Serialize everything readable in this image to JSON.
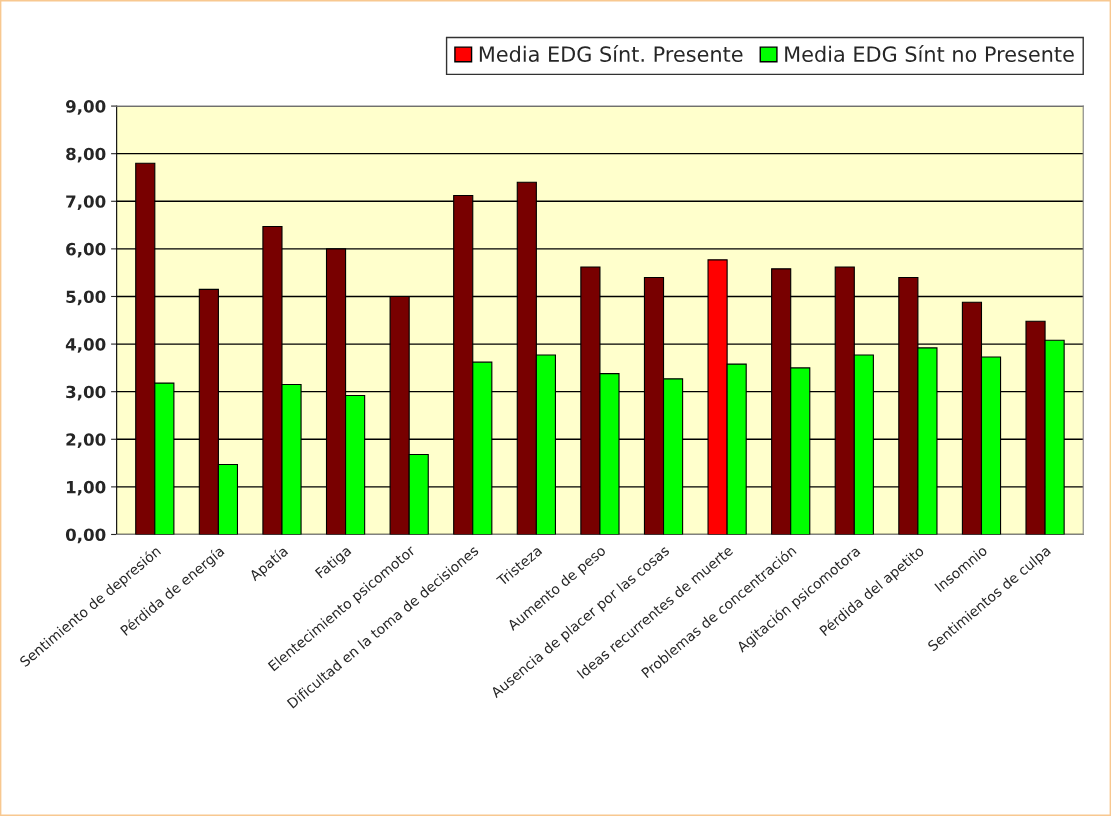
{
  "chart_data": {
    "type": "bar",
    "categories": [
      "Sentimiento de depresión",
      "Pérdida de energía",
      "Apatía",
      "Fatiga",
      "Elentecimiento psicomotor",
      "Dificultad en la toma de decisiones",
      "Tristeza",
      "Aumento de peso",
      "Ausencia de placer por las cosas",
      "Ideas recurrentes de muerte",
      "Problemas de concentración",
      "Agitación psicomotora",
      "Pérdida del apetito",
      "Insomnio",
      "Sentimientos de culpa"
    ],
    "series": [
      {
        "name": "Media EDG Sínt. Presente",
        "color": "#ff0000",
        "colors": [
          "#780000",
          "#780000",
          "#780000",
          "#780000",
          "#780000",
          "#780000",
          "#780000",
          "#780000",
          "#780000",
          "#ff0000",
          "#780000",
          "#780000",
          "#780000",
          "#780000",
          "#780000"
        ],
        "values": [
          7.8,
          5.15,
          6.47,
          6.0,
          5.0,
          7.12,
          7.4,
          5.62,
          5.4,
          5.77,
          5.58,
          5.62,
          5.4,
          4.88,
          4.48
        ]
      },
      {
        "name": "Media EDG Sínt no Presente",
        "color": "#00ff00",
        "values": [
          3.18,
          1.47,
          3.15,
          2.92,
          1.68,
          3.62,
          3.77,
          3.38,
          3.27,
          3.58,
          3.5,
          3.77,
          3.92,
          3.73,
          4.08
        ]
      }
    ],
    "ylim": [
      0,
      9
    ],
    "yticks": [
      {
        "value": 0,
        "label": "0,00"
      },
      {
        "value": 1,
        "label": "1,00"
      },
      {
        "value": 2,
        "label": "2,00"
      },
      {
        "value": 3,
        "label": "3,00"
      },
      {
        "value": 4,
        "label": "4,00"
      },
      {
        "value": 5,
        "label": "5,00"
      },
      {
        "value": 6,
        "label": "6,00"
      },
      {
        "value": 7,
        "label": "7,00"
      },
      {
        "value": 8,
        "label": "8,00"
      },
      {
        "value": 9,
        "label": "9,00"
      }
    ],
    "grid": "y",
    "legend": "top right"
  }
}
